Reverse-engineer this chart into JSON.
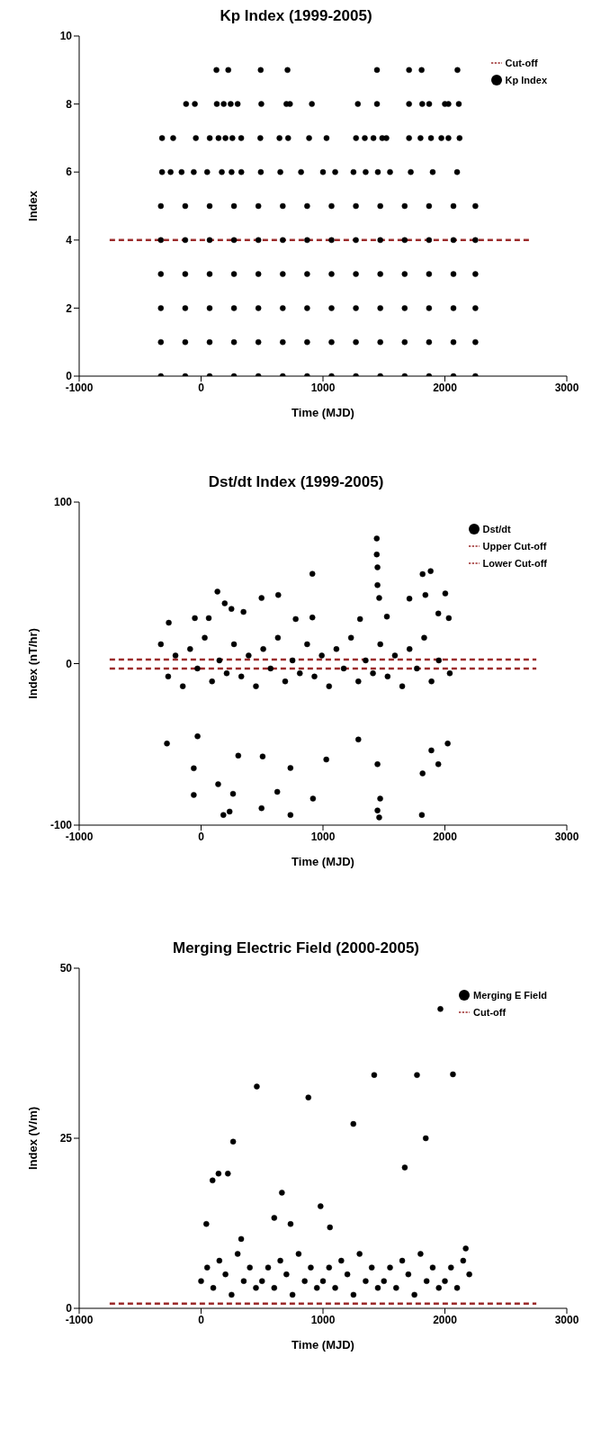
{
  "chart_data": [
    {
      "type": "scatter",
      "title": "Kp Index (1999-2005)",
      "xlabel": "Time (MJD)",
      "ylabel": "Index",
      "xlim": [
        -1000,
        3000
      ],
      "xticks": [
        -1000,
        0,
        1000,
        2000,
        3000
      ],
      "ylim": [
        0,
        10
      ],
      "yticks": [
        0,
        2,
        4,
        6,
        8,
        10
      ],
      "legend": "top right",
      "series": [
        {
          "name": "Cut-off",
          "type": "line",
          "line_style": "dashed",
          "color": "#9b2a2a",
          "x": [
            -750,
            2700
          ],
          "values": [
            4,
            4
          ]
        },
        {
          "name": "Kp Index",
          "color": "#000000",
          "marker": "circle",
          "x": [
            -330,
            -130,
            70,
            270,
            470,
            670,
            870,
            1070,
            1270,
            1470,
            1670,
            1870,
            2070,
            2250,
            -330,
            -130,
            70,
            270,
            470,
            670,
            870,
            1070,
            1270,
            1470,
            1670,
            1870,
            2070,
            2250,
            -330,
            -130,
            70,
            270,
            470,
            670,
            870,
            1070,
            1270,
            1470,
            1670,
            1870,
            2070,
            2250,
            -330,
            -130,
            70,
            270,
            470,
            670,
            870,
            1070,
            1270,
            1470,
            1670,
            1870,
            2070,
            2250,
            -330,
            -130,
            70,
            270,
            470,
            670,
            870,
            1070,
            1270,
            1470,
            1670,
            1870,
            2070,
            2250,
            -330,
            -130,
            70,
            270,
            470,
            670,
            870,
            1070,
            1270,
            1470,
            1670,
            1870,
            2070,
            2250,
            -320,
            -250,
            -160,
            -60,
            50,
            170,
            250,
            330,
            490,
            650,
            820,
            1000,
            1100,
            1250,
            1350,
            1450,
            1550,
            1720,
            1900,
            2100,
            -320,
            -229,
            -43,
            71,
            143,
            200,
            257,
            329,
            486,
            643,
            714,
            886,
            1029,
            1271,
            1343,
            1414,
            1486,
            1520,
            1706,
            1800,
            1886,
            1971,
            2029,
            2120,
            -123,
            -51,
            129,
            186,
            243,
            300,
            494,
            700,
            729,
            909,
            1286,
            1443,
            1706,
            1814,
            1871,
            2000,
            2029,
            2114,
            126,
            223,
            489,
            709,
            1443,
            1706,
            1809,
            2103
          ],
          "values": [
            0,
            0,
            0,
            0,
            0,
            0,
            0,
            0,
            0,
            0,
            0,
            0,
            0,
            0,
            1,
            1,
            1,
            1,
            1,
            1,
            1,
            1,
            1,
            1,
            1,
            1,
            1,
            1,
            2,
            2,
            2,
            2,
            2,
            2,
            2,
            2,
            2,
            2,
            2,
            2,
            2,
            2,
            3,
            3,
            3,
            3,
            3,
            3,
            3,
            3,
            3,
            3,
            3,
            3,
            3,
            3,
            4,
            4,
            4,
            4,
            4,
            4,
            4,
            4,
            4,
            4,
            4,
            4,
            4,
            4,
            5,
            5,
            5,
            5,
            5,
            5,
            5,
            5,
            5,
            5,
            5,
            5,
            5,
            5,
            6,
            6,
            6,
            6,
            6,
            6,
            6,
            6,
            6,
            6,
            6,
            6,
            6,
            6,
            6,
            6,
            6,
            6,
            6,
            6,
            7,
            7,
            7,
            7,
            7,
            7,
            7,
            7,
            7,
            7,
            7,
            7,
            7,
            7,
            7,
            7,
            7,
            7,
            7,
            7,
            7,
            7,
            7,
            7,
            8,
            8,
            8,
            8,
            8,
            8,
            8,
            8,
            8,
            8,
            8,
            8,
            8,
            8,
            8,
            8,
            8,
            8,
            9,
            9,
            9,
            9,
            9,
            9,
            9,
            9
          ]
        }
      ]
    },
    {
      "type": "scatter",
      "title": "Dst/dt Index (1999-2005)",
      "xlabel": "Time (MJD)",
      "ylabel": "Index (nT/hr)",
      "xlim": [
        -1000,
        3000
      ],
      "xticks": [
        -1000,
        0,
        1000,
        2000,
        3000
      ],
      "ylim": [
        -100,
        100
      ],
      "yticks": [
        -100,
        0,
        100
      ],
      "legend": "top right",
      "series": [
        {
          "name": "Dst/dt",
          "color": "#000000",
          "marker": "circle",
          "x": [
            -330,
            -270,
            -210,
            -150,
            -90,
            -30,
            30,
            90,
            150,
            210,
            270,
            330,
            390,
            450,
            510,
            570,
            630,
            690,
            750,
            810,
            870,
            930,
            990,
            1050,
            1110,
            1170,
            1230,
            1290,
            1350,
            1410,
            1470,
            1530,
            1590,
            1650,
            1710,
            1770,
            1830,
            1890,
            1950,
            2040,
            1441,
            1441,
            1447,
            1447,
            913,
            1817,
            1883,
            134,
            633,
            496,
            2003,
            1709,
            1840,
            194,
            1461,
            -265,
            -51,
            63,
            249,
            348,
            776,
            913,
            1304,
            1524,
            1946,
            2032,
            -280,
            -60,
            -60,
            140,
            262,
            183,
            234,
            496,
            505,
            625,
            733,
            733,
            918,
            1027,
            1447,
            1461,
            1469,
            1447,
            1811,
            1817,
            1946,
            2023,
            1290,
            1889,
            305,
            -29
          ],
          "values": [
            12,
            -8,
            5,
            -14,
            9,
            -3,
            16,
            -11,
            2,
            -6,
            12,
            -8,
            5,
            -14,
            9,
            -3,
            16,
            -11,
            2,
            -6,
            12,
            -8,
            5,
            -14,
            9,
            -3,
            16,
            -11,
            2,
            -6,
            12,
            -8,
            5,
            -14,
            9,
            -3,
            16,
            -11,
            2,
            -6,
            77.5,
            67.6,
            59.6,
            48.6,
            55.6,
            55.4,
            57.3,
            44.6,
            42.5,
            40.6,
            43.4,
            40.2,
            42.5,
            37.3,
            40.6,
            25.3,
            28.2,
            28.2,
            33.9,
            32,
            27.6,
            28.6,
            27.6,
            29.1,
            31,
            28.2,
            -49.5,
            -64.8,
            -81.3,
            -74.7,
            -80.6,
            -93.7,
            -91.6,
            -89.5,
            -57.5,
            -79.4,
            -93.7,
            -64.6,
            -83.6,
            -59.4,
            -90.9,
            -95.2,
            -83.6,
            -62.3,
            -93.7,
            -68,
            -62.3,
            -49.5,
            -47,
            -53.7,
            -57,
            -45
          ]
        },
        {
          "name": "Upper Cut-off",
          "type": "line",
          "line_style": "dashed",
          "color": "#9b2a2a",
          "x": [
            -750,
            2750
          ],
          "values": [
            2.5,
            2.5
          ]
        },
        {
          "name": "Lower Cut-off",
          "type": "line",
          "line_style": "dashed",
          "color": "#9b2a2a",
          "x": [
            -750,
            2750
          ],
          "values": [
            -3,
            -3
          ]
        }
      ]
    },
    {
      "type": "scatter",
      "title": "Merging Electric Field (2000-2005)",
      "xlabel": "Time (MJD)",
      "ylabel": "Index (V/m)",
      "xlim": [
        -1000,
        3000
      ],
      "xticks": [
        -1000,
        0,
        1000,
        2000,
        3000
      ],
      "ylim": [
        0,
        50
      ],
      "yticks": [
        0,
        25,
        50
      ],
      "legend": "top right",
      "series": [
        {
          "name": "Merging E Field",
          "color": "#000000",
          "marker": "circle",
          "x": [
            0,
            50,
            100,
            150,
            200,
            250,
            300,
            350,
            400,
            450,
            500,
            550,
            600,
            650,
            700,
            750,
            800,
            850,
            900,
            950,
            1000,
            1050,
            1100,
            1150,
            1200,
            1250,
            1300,
            1350,
            1400,
            1450,
            1500,
            1550,
            1600,
            1650,
            1700,
            1750,
            1800,
            1850,
            1900,
            1950,
            2000,
            2050,
            2100,
            2150,
            2200,
            94,
            143,
            220,
            263,
            457,
            600,
            663,
            734,
            880,
            980,
            1057,
            1249,
            1420,
            1671,
            1771,
            1843,
            1963,
            2066,
            2171,
            43,
            329
          ],
          "values": [
            4,
            6,
            3,
            7,
            5,
            2,
            8,
            4,
            6,
            3,
            4,
            6,
            3,
            7,
            5,
            2,
            8,
            4,
            6,
            3,
            4,
            6,
            3,
            7,
            5,
            2,
            8,
            4,
            6,
            3,
            4,
            6,
            3,
            7,
            5,
            2,
            8,
            4,
            6,
            3,
            4,
            6,
            3,
            7,
            5,
            18.8,
            19.8,
            19.8,
            24.5,
            32.6,
            13.3,
            17,
            12.4,
            31,
            15,
            11.9,
            27.1,
            34.3,
            20.7,
            34.3,
            25,
            44,
            34.4,
            8.8,
            12.4,
            10.2
          ]
        },
        {
          "name": "Cut-off",
          "type": "line",
          "line_style": "dashed",
          "color": "#9b2a2a",
          "x": [
            -750,
            2750
          ],
          "values": [
            0.7,
            0.7
          ]
        }
      ]
    }
  ]
}
